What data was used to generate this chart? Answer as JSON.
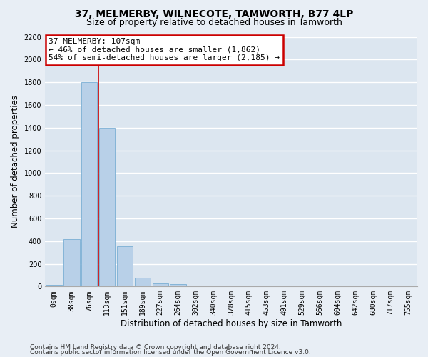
{
  "title_line1": "37, MELMERBY, WILNECOTE, TAMWORTH, B77 4LP",
  "title_line2": "Size of property relative to detached houses in Tamworth",
  "xlabel": "Distribution of detached houses by size in Tamworth",
  "ylabel": "Number of detached properties",
  "bar_labels": [
    "0sqm",
    "38sqm",
    "76sqm",
    "113sqm",
    "151sqm",
    "189sqm",
    "227sqm",
    "264sqm",
    "302sqm",
    "340sqm",
    "378sqm",
    "415sqm",
    "453sqm",
    "491sqm",
    "529sqm",
    "566sqm",
    "604sqm",
    "642sqm",
    "680sqm",
    "717sqm",
    "755sqm"
  ],
  "bar_values": [
    15,
    420,
    1800,
    1400,
    355,
    75,
    25,
    18,
    0,
    0,
    0,
    0,
    0,
    0,
    0,
    0,
    0,
    0,
    0,
    0,
    0
  ],
  "bar_color": "#b8d0e8",
  "bar_edgecolor": "#7aaed4",
  "vline_x_index": 2.5,
  "vline_color": "#cc0000",
  "annotation_line1": "37 MELMERBY: 107sqm",
  "annotation_line2": "← 46% of detached houses are smaller (1,862)",
  "annotation_line3": "54% of semi-detached houses are larger (2,185) →",
  "annotation_box_edgecolor": "#cc0000",
  "annotation_box_facecolor": "#ffffff",
  "ylim": [
    0,
    2200
  ],
  "yticks": [
    0,
    200,
    400,
    600,
    800,
    1000,
    1200,
    1400,
    1600,
    1800,
    2000,
    2200
  ],
  "footer_line1": "Contains HM Land Registry data © Crown copyright and database right 2024.",
  "footer_line2": "Contains public sector information licensed under the Open Government Licence v3.0.",
  "background_color": "#e8eef5",
  "plot_background_color": "#dce6f0",
  "grid_color": "#ffffff",
  "title_fontsize": 10,
  "subtitle_fontsize": 9,
  "axis_label_fontsize": 8.5,
  "tick_fontsize": 7,
  "annotation_fontsize": 8,
  "footer_fontsize": 6.5
}
